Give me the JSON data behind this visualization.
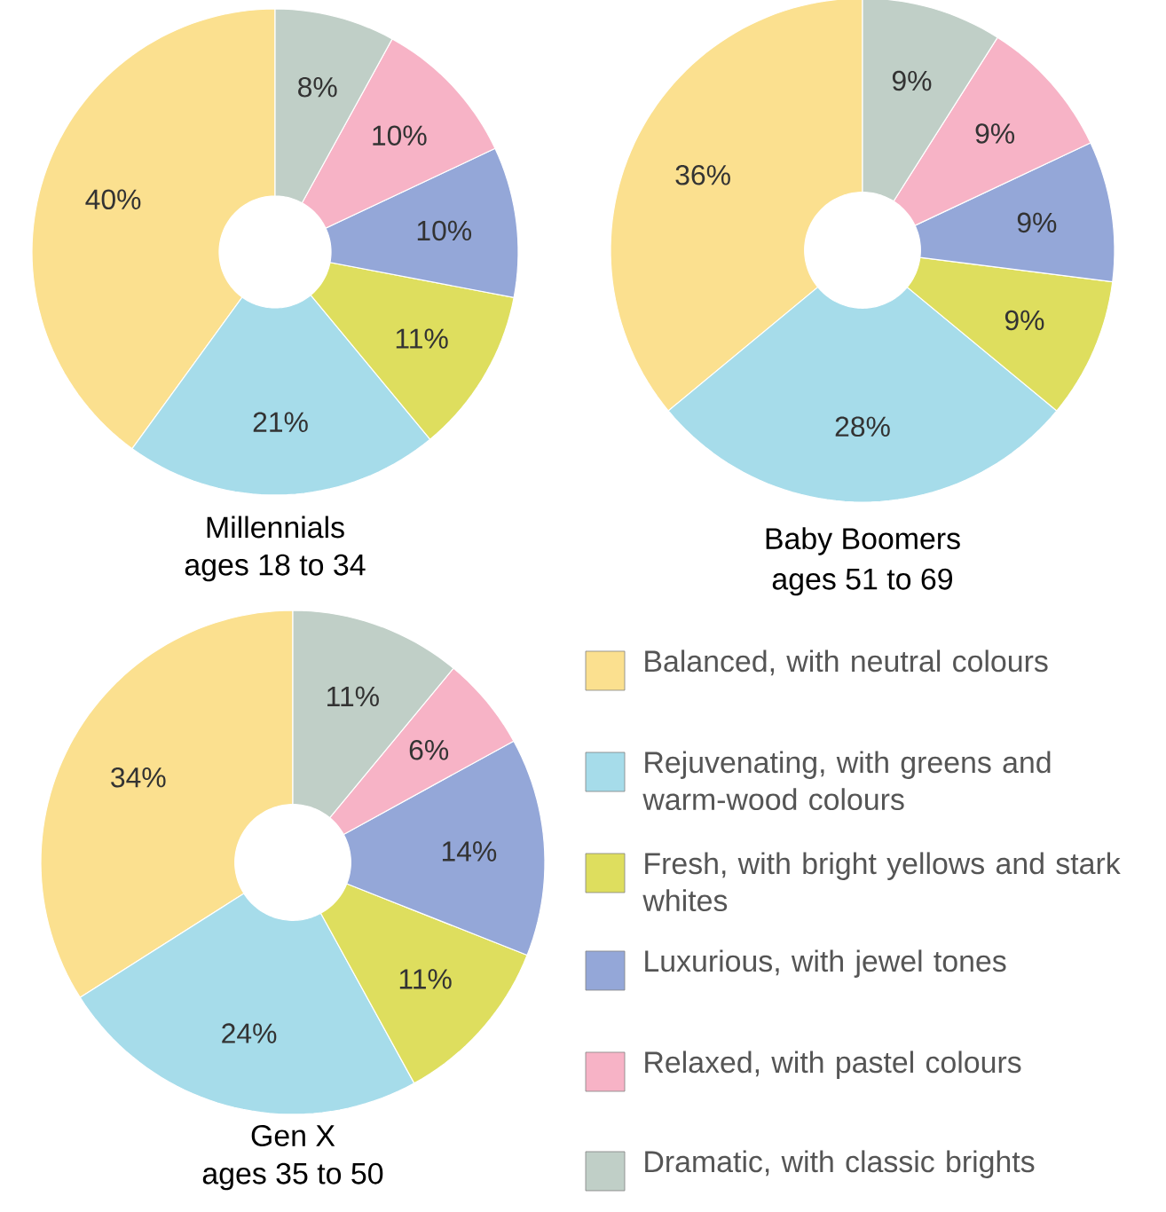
{
  "chart_data": [
    {
      "type": "donut",
      "title": "Millennials",
      "subtitle": "ages 18 to 34",
      "categories": [
        null,
        null,
        null,
        null,
        null,
        null
      ],
      "values": [
        40,
        21,
        11,
        10,
        10,
        8
      ],
      "value_labels": [
        "40%",
        "21%",
        "11%",
        "10%",
        "10%",
        "8%"
      ],
      "colors": [
        "#fbe08f",
        "#a6dcea",
        "#dede5e",
        "#94a7d8",
        "#f7b3c6",
        "#c0cfc7"
      ]
    },
    {
      "type": "donut",
      "title": "Baby Boomers",
      "subtitle": "ages 51 to 69",
      "categories": [
        null,
        null,
        null,
        null,
        null,
        null
      ],
      "values": [
        36,
        28,
        9,
        9,
        9,
        9
      ],
      "value_labels": [
        "36%",
        "28%",
        "9%",
        "9%",
        "9%",
        "9%"
      ],
      "colors": [
        "#fbe08f",
        "#a6dcea",
        "#dede5e",
        "#94a7d8",
        "#f7b3c6",
        "#c0cfc7"
      ]
    },
    {
      "type": "donut",
      "title": "Gen X",
      "subtitle": "ages 35 to 50",
      "categories": [
        "Balanced, with neutral colours",
        "Rejuvenating, with greens and warm-wood colours",
        "Fresh, with bright yellows and stark whites",
        "Luxurious, with jewel tones",
        "Relaxed, with pastel colours",
        "Dramatic, with classic brights"
      ],
      "values": [
        34,
        24,
        11,
        14,
        6,
        11
      ],
      "value_labels": [
        "34%",
        "24%",
        "11%",
        "14%",
        "6%",
        "11%"
      ],
      "colors": [
        "#fbe08f",
        "#a6dcea",
        "#dede5e",
        "#94a7d8",
        "#f7b3c6",
        "#c0cfc7"
      ],
      "legend": "right"
    }
  ]
}
